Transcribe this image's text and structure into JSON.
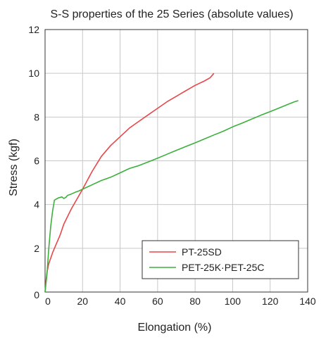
{
  "chart_data": {
    "type": "line",
    "title": "S-S properties of the 25 Series (absolute values)",
    "xlabel": "Elongation (%)",
    "ylabel": "Stress (kgf)",
    "xlim": [
      0,
      140
    ],
    "ylim": [
      0,
      12
    ],
    "x_ticks": [
      0,
      20,
      40,
      60,
      80,
      100,
      120,
      140
    ],
    "y_ticks": [
      0,
      2,
      4,
      6,
      8,
      10,
      12
    ],
    "grid": true,
    "legend_position": "bottom-right",
    "series": [
      {
        "name": "PT-25SD",
        "color": "#e8474a",
        "points": [
          [
            0,
            0
          ],
          [
            0.5,
            0.5
          ],
          [
            1,
            0.9
          ],
          [
            2,
            1.3
          ],
          [
            4,
            1.8
          ],
          [
            6,
            2.2
          ],
          [
            8,
            2.6
          ],
          [
            10,
            3.1
          ],
          [
            14,
            3.8
          ],
          [
            18,
            4.4
          ],
          [
            20,
            4.7
          ],
          [
            25,
            5.5
          ],
          [
            30,
            6.2
          ],
          [
            35,
            6.7
          ],
          [
            40,
            7.1
          ],
          [
            45,
            7.5
          ],
          [
            50,
            7.8
          ],
          [
            55,
            8.1
          ],
          [
            60,
            8.4
          ],
          [
            65,
            8.7
          ],
          [
            70,
            8.95
          ],
          [
            75,
            9.2
          ],
          [
            80,
            9.45
          ],
          [
            85,
            9.65
          ],
          [
            88,
            9.8
          ],
          [
            90,
            10.0
          ]
        ]
      },
      {
        "name": "PET-25K·PET-25C",
        "color": "#3cb03c",
        "points": [
          [
            0,
            0
          ],
          [
            1,
            0.8
          ],
          [
            2,
            2.0
          ],
          [
            3,
            3.0
          ],
          [
            4,
            3.7
          ],
          [
            5,
            4.2
          ],
          [
            7,
            4.3
          ],
          [
            9,
            4.35
          ],
          [
            10,
            4.28
          ],
          [
            11,
            4.32
          ],
          [
            12,
            4.42
          ],
          [
            14,
            4.48
          ],
          [
            16,
            4.56
          ],
          [
            18,
            4.62
          ],
          [
            20,
            4.7
          ],
          [
            25,
            4.9
          ],
          [
            30,
            5.1
          ],
          [
            35,
            5.25
          ],
          [
            40,
            5.45
          ],
          [
            45,
            5.65
          ],
          [
            50,
            5.78
          ],
          [
            55,
            5.95
          ],
          [
            60,
            6.12
          ],
          [
            65,
            6.3
          ],
          [
            70,
            6.48
          ],
          [
            75,
            6.65
          ],
          [
            80,
            6.82
          ],
          [
            85,
            7.0
          ],
          [
            90,
            7.18
          ],
          [
            95,
            7.35
          ],
          [
            100,
            7.55
          ],
          [
            105,
            7.72
          ],
          [
            110,
            7.9
          ],
          [
            115,
            8.08
          ],
          [
            120,
            8.25
          ],
          [
            125,
            8.42
          ],
          [
            130,
            8.6
          ],
          [
            133,
            8.7
          ],
          [
            135,
            8.75
          ]
        ]
      }
    ]
  }
}
